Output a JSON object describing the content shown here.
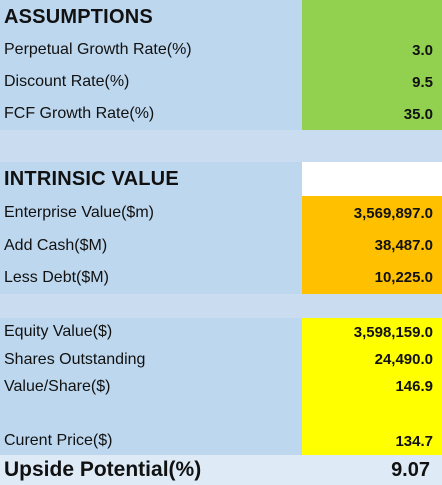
{
  "assumptions": {
    "title": "ASSUMPTIONS",
    "perpetual_growth_label": "Perpetual Growth Rate(%)",
    "perpetual_growth_value": "3.0",
    "discount_rate_label": "Discount Rate(%)",
    "discount_rate_value": "9.5",
    "fcf_growth_label": "FCF Growth Rate(%)",
    "fcf_growth_value": "35.0"
  },
  "intrinsic": {
    "title": "INTRINSIC VALUE",
    "enterprise_value_label": "Enterprise Value($m)",
    "enterprise_value_value": "3,569,897.0",
    "add_cash_label": "Add Cash($M)",
    "add_cash_value": "38,487.0",
    "less_debt_label": "Less Debt($M)",
    "less_debt_value": "10,225.0"
  },
  "equity": {
    "equity_value_label": "Equity Value($)",
    "equity_value_value": "3,598,159.0",
    "shares_label": "Shares Outstanding",
    "shares_value": "24,490.0",
    "value_share_label": "Value/Share($)",
    "value_share_value": "146.9",
    "current_price_label": "Curent Price($)",
    "current_price_value": "134.7"
  },
  "upside": {
    "label": "Upside Potential(%)",
    "value": "9.07"
  },
  "colors": {
    "label_bg": "#bdd7ee",
    "green": "#92d050",
    "orange": "#ffc000",
    "yellow": "#ffff00"
  }
}
